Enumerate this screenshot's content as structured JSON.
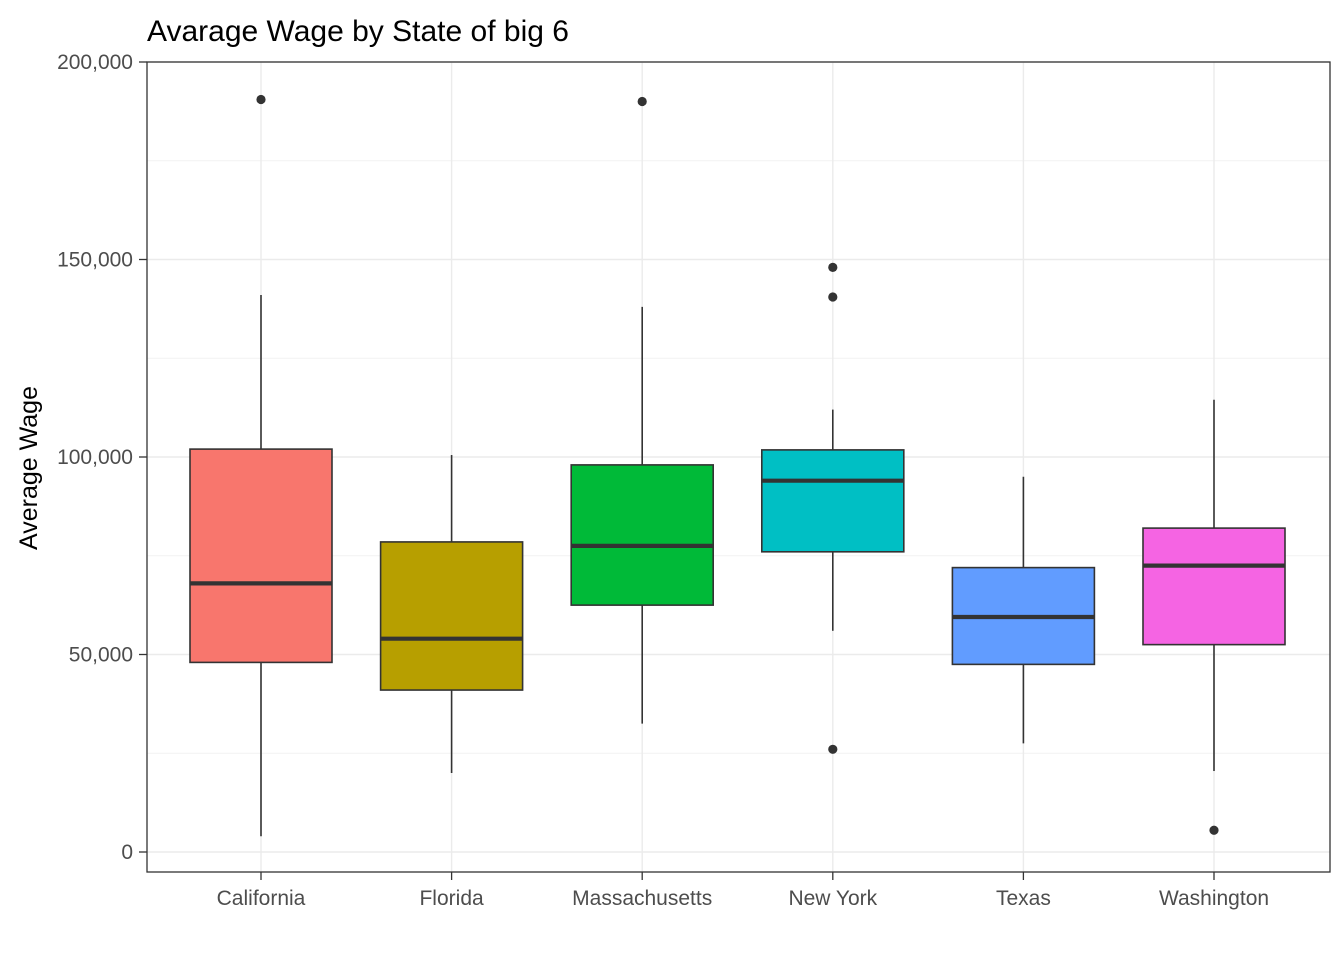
{
  "chart_data": {
    "type": "boxplot",
    "title": "Avarage Wage by State of big 6",
    "xlabel": "",
    "ylabel": "Average Wage",
    "ylim": [
      -5000,
      200000
    ],
    "y_ticks": [
      0,
      50000,
      100000,
      150000,
      200000
    ],
    "y_tick_labels": [
      "0",
      "50,000",
      "100,000",
      "150,000",
      "200,000"
    ],
    "y_minor_ticks": [
      25000,
      75000,
      125000,
      175000
    ],
    "categories": [
      "California",
      "Florida",
      "Massachusetts",
      "New York",
      "Texas",
      "Washington"
    ],
    "grid": true,
    "legend": "none",
    "boxes": [
      {
        "category": "California",
        "color": "#F8766D",
        "whisker_low": 4000,
        "q1": 48000,
        "median": 68000,
        "q3": 102000,
        "whisker_high": 141000,
        "outliers": [
          190500
        ]
      },
      {
        "category": "Florida",
        "color": "#B79F00",
        "whisker_low": 20000,
        "q1": 41000,
        "median": 54000,
        "q3": 78500,
        "whisker_high": 100500,
        "outliers": []
      },
      {
        "category": "Massachusetts",
        "color": "#00BA38",
        "whisker_low": 32500,
        "q1": 62500,
        "median": 77500,
        "q3": 98000,
        "whisker_high": 138000,
        "outliers": [
          190000
        ]
      },
      {
        "category": "New York",
        "color": "#00BFC4",
        "whisker_low": 56000,
        "q1": 76000,
        "median": 94000,
        "q3": 101800,
        "whisker_high": 112000,
        "outliers": [
          148000,
          140500,
          26000
        ]
      },
      {
        "category": "Texas",
        "color": "#619CFF",
        "whisker_low": 27500,
        "q1": 47500,
        "median": 59500,
        "q3": 72000,
        "whisker_high": 95000,
        "outliers": []
      },
      {
        "category": "Washington",
        "color": "#F564E3",
        "whisker_low": 20500,
        "q1": 52500,
        "median": 72500,
        "q3": 82000,
        "whisker_high": 114500,
        "outliers": [
          5500
        ]
      }
    ]
  }
}
